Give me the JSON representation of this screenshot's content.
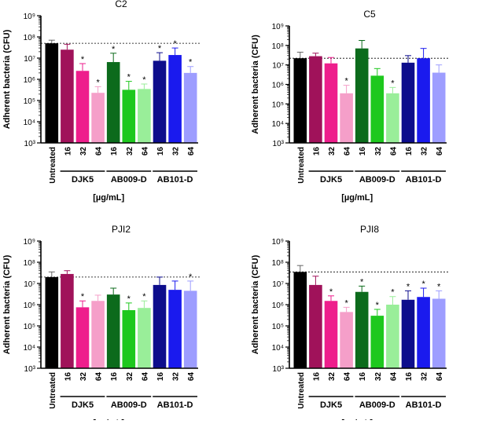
{
  "figure_label": "[µg/mL]",
  "group_labels": [
    "DJK5",
    "AB009-D",
    "AB101-D"
  ],
  "chart_data": [
    {
      "type": "bar",
      "title": "C2",
      "ylabel": "Adherent bacteria (CFU)",
      "xlabel": "[µg/mL]",
      "yscale": "log",
      "ylim": [
        1000,
        1000000000
      ],
      "ytick_labels": [
        "10³",
        "10⁴",
        "10⁵",
        "10⁶",
        "10⁷",
        "10⁸",
        "10⁹"
      ],
      "reference_line": 50000000,
      "categories": [
        "Untreated",
        "16",
        "32",
        "64",
        "16",
        "32",
        "64",
        "16",
        "32",
        "64"
      ],
      "values": [
        50000000,
        25000000,
        2500000,
        230000,
        6500000,
        320000,
        350000,
        7500000,
        14000000,
        2000000
      ],
      "error_upper": [
        70000000,
        45000000,
        5500000,
        450000,
        17000000,
        800000,
        600000,
        18000000,
        30000000,
        4000000
      ],
      "significant": [
        false,
        false,
        true,
        true,
        true,
        true,
        true,
        true,
        true,
        true
      ],
      "colors": [
        "#000000",
        "#a0125a",
        "#ee1e8c",
        "#f59fc9",
        "#0c6b1c",
        "#1ec81e",
        "#99ee99",
        "#0d0d8c",
        "#1a1aee",
        "#9d9dff"
      ]
    },
    {
      "type": "bar",
      "title": "C5",
      "ylabel": "Adherent bacteria (CFU)",
      "xlabel": "[µg/mL]",
      "yscale": "log",
      "ylim": [
        1000,
        1000000000
      ],
      "ytick_labels": [
        "10³",
        "10⁴",
        "10⁵",
        "10⁶",
        "10⁷",
        "10⁸",
        "10⁹"
      ],
      "reference_line": 22000000,
      "categories": [
        "Untreated",
        "16",
        "32",
        "64",
        "16",
        "32",
        "64",
        "16",
        "32",
        "64"
      ],
      "values": [
        22000000,
        28000000,
        12000000,
        350000,
        70000000,
        2800000,
        350000,
        13000000,
        22000000,
        4000000
      ],
      "error_upper": [
        45000000,
        40000000,
        24000000,
        900000,
        180000000,
        6500000,
        700000,
        30000000,
        70000000,
        10000000
      ],
      "significant": [
        false,
        false,
        false,
        true,
        false,
        false,
        true,
        false,
        false,
        false
      ],
      "colors": [
        "#000000",
        "#a0125a",
        "#ee1e8c",
        "#f59fc9",
        "#0c6b1c",
        "#1ec81e",
        "#99ee99",
        "#0d0d8c",
        "#1a1aee",
        "#9d9dff"
      ]
    },
    {
      "type": "bar",
      "title": "PJI2",
      "ylabel": "Adherent bacteria (CFU)",
      "xlabel": "[µg/mL]",
      "yscale": "log",
      "ylim": [
        1000,
        1000000000
      ],
      "ytick_labels": [
        "10³",
        "10⁴",
        "10⁵",
        "10⁶",
        "10⁷",
        "10⁸",
        "10⁹"
      ],
      "reference_line": 20000000,
      "categories": [
        "Untreated",
        "16",
        "32",
        "64",
        "16",
        "32",
        "64",
        "16",
        "32",
        "64"
      ],
      "values": [
        20000000,
        28000000,
        750000,
        1500000,
        3000000,
        550000,
        700000,
        8500000,
        5000000,
        4500000
      ],
      "error_upper": [
        35000000,
        40000000,
        1500000,
        2800000,
        6000000,
        1200000,
        1500000,
        20000000,
        13000000,
        13000000
      ],
      "significant": [
        false,
        false,
        true,
        false,
        false,
        true,
        true,
        false,
        false,
        true
      ],
      "colors": [
        "#000000",
        "#a0125a",
        "#ee1e8c",
        "#f59fc9",
        "#0c6b1c",
        "#1ec81e",
        "#99ee99",
        "#0d0d8c",
        "#1a1aee",
        "#9d9dff"
      ]
    },
    {
      "type": "bar",
      "title": "PJI8",
      "ylabel": "Adherent bacteria (CFU)",
      "xlabel": "[µg/mL]",
      "yscale": "log",
      "ylim": [
        1000,
        1000000000
      ],
      "ytick_labels": [
        "10³",
        "10⁴",
        "10⁵",
        "10⁶",
        "10⁷",
        "10⁸",
        "10⁹"
      ],
      "reference_line": 35000000,
      "categories": [
        "Untreated",
        "16",
        "32",
        "64",
        "16",
        "32",
        "64",
        "16",
        "32",
        "64"
      ],
      "values": [
        35000000,
        8500000,
        1500000,
        450000,
        4000000,
        300000,
        1000000,
        1700000,
        2300000,
        1900000
      ],
      "error_upper": [
        70000000,
        22000000,
        2600000,
        750000,
        7500000,
        600000,
        2400000,
        4500000,
        6000000,
        4500000
      ],
      "significant": [
        false,
        false,
        true,
        true,
        true,
        true,
        true,
        true,
        true,
        true
      ],
      "colors": [
        "#000000",
        "#a0125a",
        "#ee1e8c",
        "#f59fc9",
        "#0c6b1c",
        "#1ec81e",
        "#99ee99",
        "#0d0d8c",
        "#1a1aee",
        "#9d9dff"
      ]
    }
  ]
}
